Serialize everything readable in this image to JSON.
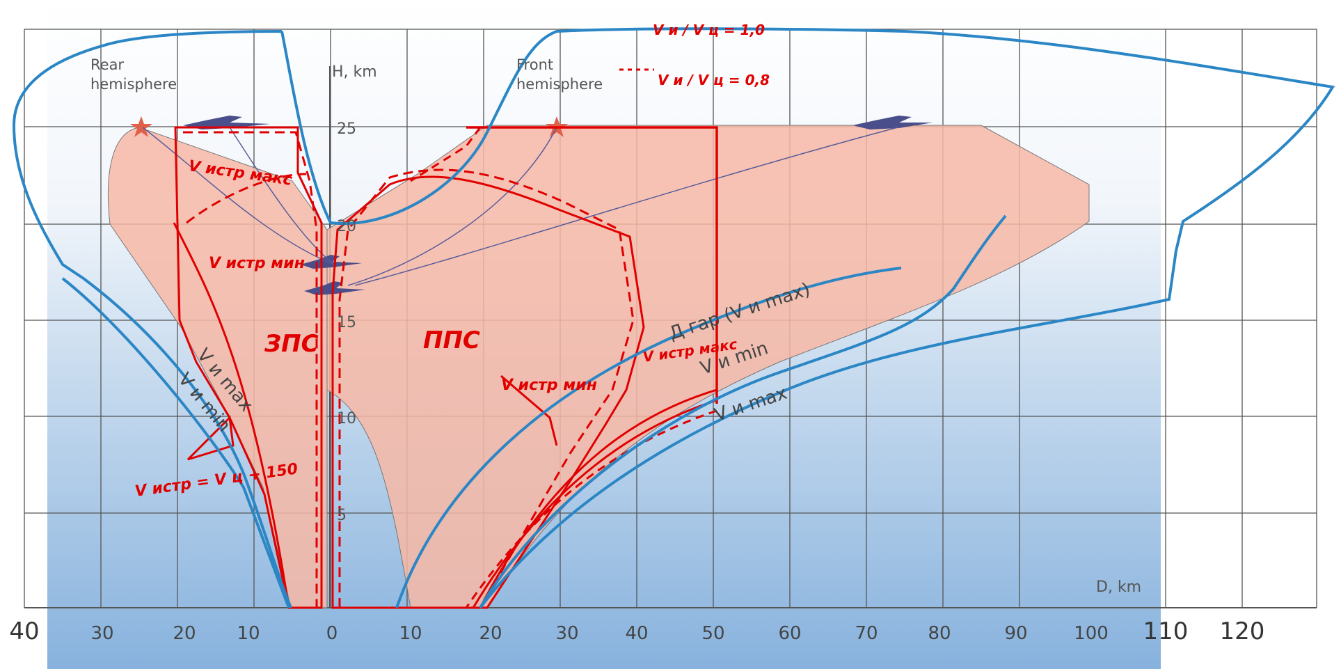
{
  "colors": {
    "grid": "#555555",
    "zone_fill": "#f7b9a6",
    "red_overlay": "#e00000",
    "blue_overlay": "#2b86c5",
    "aircraft": "#4a4e8a",
    "star": "#e0604a",
    "bg_top": "#ffffff",
    "bg_bottom": "#87b2dd"
  },
  "axes": {
    "h_label": "H, km",
    "d_label": "D, km",
    "h_ticks": [
      {
        "label": "25",
        "value": 25
      },
      {
        "label": "20",
        "value": 20
      },
      {
        "label": "15",
        "value": 15
      },
      {
        "label": "10",
        "value": 10
      },
      {
        "label": "5",
        "value": 5
      }
    ],
    "inner_x_ticks": [
      "30",
      "20",
      "10",
      "0",
      "10",
      "20",
      "30",
      "40",
      "50",
      "60",
      "70",
      "80",
      "90",
      "100"
    ],
    "outer_x_ticks": [
      "40",
      "110",
      "120"
    ]
  },
  "labels": {
    "rear_hemisphere": [
      "Rear",
      "hemisphere"
    ],
    "front_hemisphere": [
      "Front",
      "hemisphere"
    ],
    "zps": "ЗПС",
    "pps": "ППС",
    "v_istr_maks": "V истр макс",
    "v_istr_min_left": "V истр мин",
    "v_istr_min_center": "V истр мин",
    "v_istr_maks_right": "V истр макс",
    "v_istr_eq": "V истр = V ц + 150",
    "ratio_1": "V и / V ц = 1,0",
    "ratio_2": "V и / V ц = 0,8",
    "d_gar": "Д гар (V и max)",
    "v_i_min_right": "V и min",
    "v_i_max_right": "V и max",
    "v_i_max_left": "V и max",
    "v_i_min_left": "V и min"
  }
}
